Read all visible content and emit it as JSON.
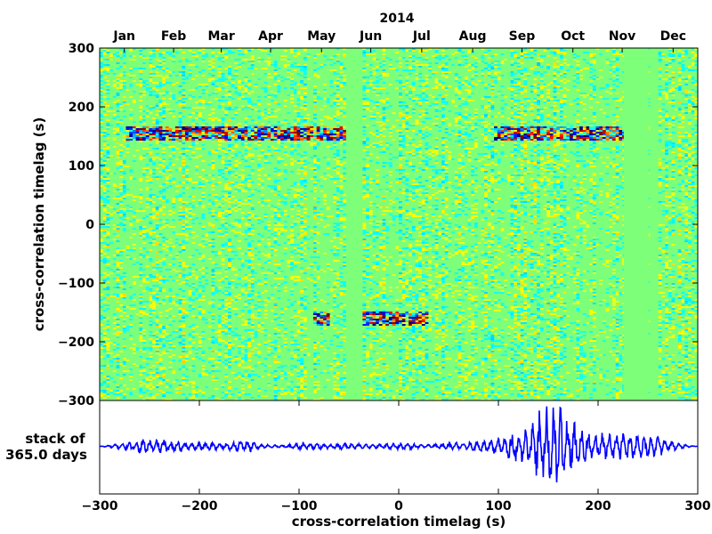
{
  "chart_data": [
    {
      "type": "heatmap",
      "title": "",
      "year_label": "2014",
      "xlabel": "",
      "ylabel": "cross-correlation timelag (s)",
      "ylim": [
        -300,
        300
      ],
      "yticks": [
        {
          "value": 300,
          "label": "300"
        },
        {
          "value": 200,
          "label": "200"
        },
        {
          "value": 100,
          "label": "100"
        },
        {
          "value": 0,
          "label": "0"
        },
        {
          "value": -100,
          "label": "−100"
        },
        {
          "value": -200,
          "label": "−200"
        },
        {
          "value": -300,
          "label": "−300"
        }
      ],
      "x_axis": "day of year 2014",
      "xlim": [
        1,
        365
      ],
      "months": [
        {
          "label": "Jan",
          "day": 16
        },
        {
          "label": "Feb",
          "day": 46
        },
        {
          "label": "Mar",
          "day": 75
        },
        {
          "label": "Apr",
          "day": 105
        },
        {
          "label": "May",
          "day": 136
        },
        {
          "label": "Jun",
          "day": 166
        },
        {
          "label": "Jul",
          "day": 197
        },
        {
          "label": "Aug",
          "day": 228
        },
        {
          "label": "Sep",
          "day": 258
        },
        {
          "label": "Oct",
          "day": 289
        },
        {
          "label": "Nov",
          "day": 319
        },
        {
          "label": "Dec",
          "day": 350
        }
      ],
      "data_gaps_days": [
        [
          151,
          160
        ],
        [
          320,
          334
        ],
        [
          336,
          339
        ]
      ],
      "colormap": {
        "low": "#00007f",
        "mid": "#7dff7a",
        "high": "#7f0000"
      },
      "strong_features": [
        {
          "timelag_s": 155,
          "from_day": 16,
          "to_day": 150
        },
        {
          "timelag_s": 155,
          "from_day": 240,
          "to_day": 320
        },
        {
          "timelag_s": -160,
          "from_day": 160,
          "to_day": 200
        },
        {
          "timelag_s": -160,
          "from_day": 130,
          "to_day": 140
        }
      ],
      "colors": {
        "data_gap": "#7dff7a"
      }
    },
    {
      "type": "line",
      "title": "",
      "ylabel": "stack of\n365.0 days",
      "ylabel_lines": [
        "stack of",
        "365.0 days"
      ],
      "xlabel": "cross-correlation timelag (s)",
      "xlim": [
        -300,
        300
      ],
      "ylim": [
        -1,
        1
      ],
      "xticks": [
        {
          "value": -300,
          "label": "−300"
        },
        {
          "value": -200,
          "label": "−200"
        },
        {
          "value": -100,
          "label": "−100"
        },
        {
          "value": 0,
          "label": "0"
        },
        {
          "value": 100,
          "label": "100"
        },
        {
          "value": 200,
          "label": "200"
        },
        {
          "value": 300,
          "label": "300"
        }
      ],
      "series": [
        {
          "color": "#0000ff",
          "x": [
            -300,
            -290,
            -280,
            -270,
            -260,
            -250,
            -240,
            -230,
            -220,
            -210,
            -200,
            -190,
            -180,
            -170,
            -160,
            -155,
            -150,
            -140,
            -130,
            -120,
            -110,
            -100,
            -90,
            -80,
            -70,
            -60,
            -50,
            -40,
            -30,
            -20,
            -10,
            0,
            10,
            20,
            30,
            40,
            50,
            60,
            70,
            80,
            90,
            100,
            110,
            120,
            125,
            130,
            135,
            140,
            145,
            150,
            155,
            160,
            165,
            170,
            175,
            180,
            185,
            190,
            195,
            200,
            210,
            220,
            230,
            240,
            250,
            260,
            270,
            280,
            290,
            300
          ],
          "envelope": [
            0.0,
            0.03,
            0.06,
            0.1,
            0.15,
            0.16,
            0.16,
            0.16,
            0.13,
            0.08,
            0.1,
            0.09,
            0.08,
            0.1,
            0.13,
            0.18,
            0.15,
            0.07,
            0.04,
            0.03,
            0.04,
            0.08,
            0.09,
            0.07,
            0.06,
            0.07,
            0.07,
            0.06,
            0.05,
            0.05,
            0.07,
            0.08,
            0.07,
            0.05,
            0.05,
            0.07,
            0.08,
            0.09,
            0.1,
            0.12,
            0.16,
            0.2,
            0.3,
            0.4,
            0.45,
            0.5,
            0.55,
            0.8,
            0.85,
            0.95,
            0.9,
            1.0,
            0.85,
            0.6,
            0.55,
            0.5,
            0.4,
            0.35,
            0.3,
            0.3,
            0.3,
            0.32,
            0.3,
            0.28,
            0.25,
            0.22,
            0.15,
            0.08,
            0.03,
            0.0
          ]
        }
      ]
    }
  ]
}
